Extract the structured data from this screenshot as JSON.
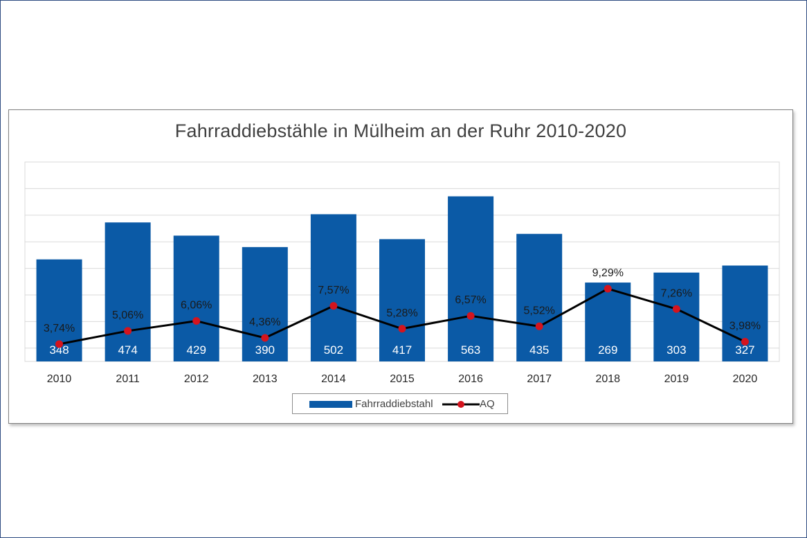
{
  "colors": {
    "bar": "#0b5aa6",
    "line": "#000000",
    "marker": "#d4141e",
    "grid": "#d9d9d9",
    "text": "#404040"
  },
  "chart_data": {
    "type": "bar",
    "title": "Fahrraddiebstähle in Mülheim an der Ruhr 2010-2020",
    "categories": [
      "2010",
      "2011",
      "2012",
      "2013",
      "2014",
      "2015",
      "2016",
      "2017",
      "2018",
      "2019",
      "2020"
    ],
    "series": [
      {
        "name": "Fahrraddiebstahl",
        "type": "bar",
        "values": [
          348,
          474,
          429,
          390,
          502,
          417,
          563,
          435,
          269,
          303,
          327
        ],
        "labels": [
          "348",
          "474",
          "429",
          "390",
          "502",
          "417",
          "563",
          "435",
          "269",
          "303",
          "327"
        ]
      },
      {
        "name": "AQ",
        "type": "line",
        "values": [
          3.74,
          5.06,
          6.06,
          4.36,
          7.57,
          5.28,
          6.57,
          5.52,
          9.29,
          7.26,
          3.98
        ],
        "labels": [
          "3,74%",
          "5,06%",
          "6,06%",
          "4,36%",
          "7,57%",
          "5,28%",
          "6,57%",
          "5,52%",
          "9,29%",
          "7,26%",
          "3,98%"
        ]
      }
    ],
    "legend_position": "bottom",
    "grid": true
  }
}
